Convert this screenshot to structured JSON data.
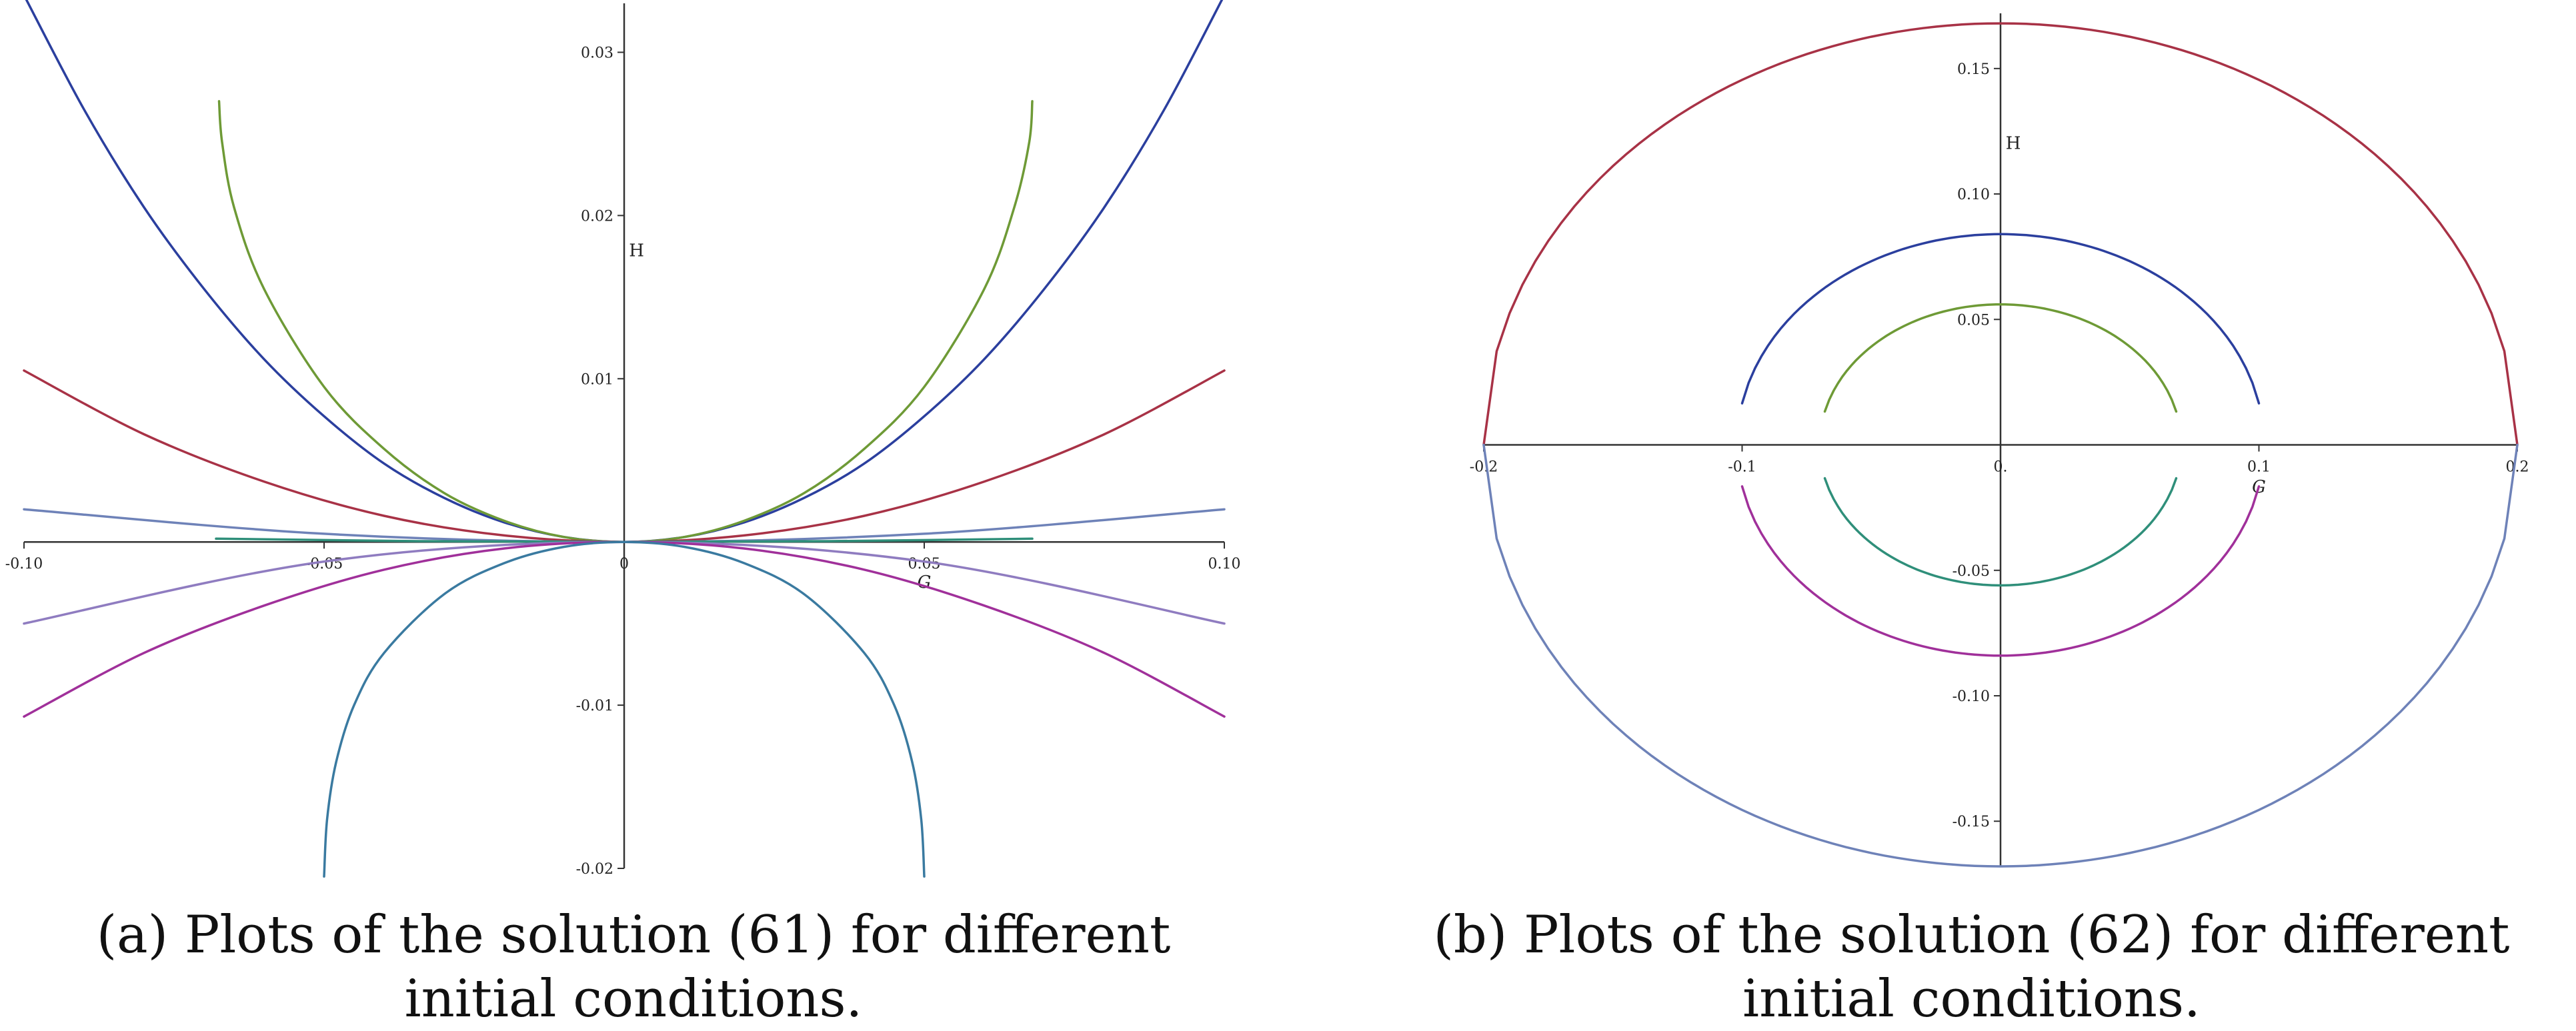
{
  "chart_data": [
    {
      "panel": "a",
      "type": "line",
      "caption": "(a) Plots of the solution (61) for different initial conditions.",
      "xlabel": "G",
      "ylabel": "H",
      "xlim": [
        -0.1,
        0.1
      ],
      "ylim": [
        -0.02,
        0.033
      ],
      "grid": false,
      "x_ticks": [
        {
          "value": -0.1,
          "label": "-0.10"
        },
        {
          "value": -0.05,
          "label": "-0.05"
        },
        {
          "value": 0,
          "label": "0"
        },
        {
          "value": 0.05,
          "label": "0.05"
        },
        {
          "value": 0.1,
          "label": "0.10"
        }
      ],
      "y_ticks": [
        {
          "value": 0.03,
          "label": "0.03"
        },
        {
          "value": 0.02,
          "label": "0.02"
        },
        {
          "value": 0.01,
          "label": "0.01"
        },
        {
          "value": -0.01,
          "label": "-0.01"
        },
        {
          "value": -0.02,
          "label": "-0.02"
        }
      ],
      "series": [
        {
          "color": "#2b3f9e",
          "x": [
            -0.1,
            -0.09,
            -0.08,
            -0.07,
            -0.06,
            -0.05,
            -0.04,
            -0.03,
            -0.02,
            -0.01,
            0,
            0.01,
            0.02,
            0.03,
            0.04,
            0.05,
            0.06,
            0.07,
            0.08,
            0.09,
            0.1
          ],
          "y": [
            0.0335,
            0.0265,
            0.0205,
            0.0155,
            0.0112,
            0.0077,
            0.0048,
            0.0027,
            0.0012,
            0.0003,
            0,
            0.0003,
            0.0012,
            0.0027,
            0.0048,
            0.0077,
            0.0112,
            0.0155,
            0.0205,
            0.0265,
            0.0335
          ]
        },
        {
          "color": "#6e9a36",
          "x": [
            -0.0675,
            -0.067,
            -0.065,
            -0.06,
            -0.05,
            -0.04,
            -0.03,
            -0.02,
            -0.01,
            0,
            0.01,
            0.02,
            0.03,
            0.04,
            0.05,
            0.06,
            0.065,
            0.0675,
            0.068
          ],
          "y": [
            0.027,
            0.0245,
            0.0205,
            0.0155,
            0.0095,
            0.0057,
            0.003,
            0.0013,
            0.0003,
            0,
            0.0003,
            0.0013,
            0.003,
            0.0057,
            0.0095,
            0.0155,
            0.0205,
            0.0245,
            0.027
          ]
        },
        {
          "color": "#a83246",
          "x": [
            -0.1,
            -0.08,
            -0.06,
            -0.04,
            -0.02,
            0,
            0.02,
            0.04,
            0.06,
            0.08,
            0.1
          ],
          "y": [
            0.0105,
            0.0066,
            0.0037,
            0.0016,
            0.0004,
            0,
            0.0004,
            0.0016,
            0.0037,
            0.0066,
            0.0105
          ]
        },
        {
          "color": "#6e82b8",
          "x": [
            -0.1,
            -0.05,
            0,
            0.05,
            0.1
          ],
          "y": [
            0.002,
            0.0005,
            0,
            0.0005,
            0.002
          ]
        },
        {
          "color": "#2f8f7a",
          "x": [
            -0.068,
            -0.034,
            0,
            0.034,
            0.068
          ],
          "y": [
            0.0002,
            5e-05,
            0,
            5e-05,
            0.0002
          ]
        },
        {
          "color": "#8f7cc0",
          "x": [
            -0.1,
            -0.05,
            0,
            0.05,
            0.1
          ],
          "y": [
            -0.005,
            -0.0012,
            0,
            -0.0012,
            -0.005
          ]
        },
        {
          "color": "#a0309a",
          "x": [
            -0.1,
            -0.08,
            -0.06,
            -0.04,
            -0.02,
            0,
            0.02,
            0.04,
            0.06,
            0.08,
            0.1
          ],
          "y": [
            -0.0107,
            -0.0068,
            -0.0039,
            -0.0017,
            -0.0004,
            0,
            -0.0004,
            -0.0017,
            -0.0039,
            -0.0068,
            -0.0107
          ]
        },
        {
          "color": "#3a7aa0",
          "x": [
            -0.05,
            -0.0495,
            -0.048,
            -0.045,
            -0.04,
            -0.03,
            -0.02,
            -0.01,
            0,
            0.01,
            0.02,
            0.03,
            0.04,
            0.045,
            0.048,
            0.0495,
            0.05
          ],
          "y": [
            -0.0205,
            -0.017,
            -0.0135,
            -0.01,
            -0.0068,
            -0.0032,
            -0.0013,
            -0.0003,
            0,
            -0.0003,
            -0.0013,
            -0.0032,
            -0.0068,
            -0.01,
            -0.0135,
            -0.017,
            -0.0205
          ]
        }
      ]
    },
    {
      "panel": "b",
      "type": "line",
      "caption": "(b) Plots of the solution (62) for different initial conditions.",
      "xlabel": "G",
      "ylabel": "H",
      "xlim": [
        -0.2,
        0.2
      ],
      "ylim": [
        -0.168,
        0.172
      ],
      "grid": false,
      "x_ticks": [
        {
          "value": -0.2,
          "label": "-0.2"
        },
        {
          "value": -0.1,
          "label": "-0.1"
        },
        {
          "value": 0,
          "label": "0."
        },
        {
          "value": 0.1,
          "label": "0.1"
        },
        {
          "value": 0.2,
          "label": "0.2"
        }
      ],
      "y_ticks": [
        {
          "value": 0.15,
          "label": "0.15"
        },
        {
          "value": 0.1,
          "label": "0.10"
        },
        {
          "value": 0.05,
          "label": "0.05"
        },
        {
          "value": -0.05,
          "label": "-0.05"
        },
        {
          "value": -0.1,
          "label": "-0.10"
        },
        {
          "value": -0.15,
          "label": "-0.15"
        }
      ],
      "series": [
        {
          "color": "#a83246",
          "center_h": 0,
          "semi_g": 0.2,
          "semi_h": 0.168,
          "g_range": [
            -0.2,
            0.2
          ],
          "sign": 1
        },
        {
          "color": "#2b3f9e",
          "center_h": 0,
          "semi_g": 0.102,
          "semi_h": 0.084,
          "g_range": [
            -0.1,
            0.1
          ],
          "sign": 1
        },
        {
          "color": "#6e9a36",
          "center_h": 0,
          "semi_g": 0.07,
          "semi_h": 0.056,
          "g_range": [
            -0.068,
            0.068
          ],
          "sign": 1
        },
        {
          "color": "#2f8f7a",
          "center_h": 0,
          "semi_g": 0.07,
          "semi_h": 0.056,
          "g_range": [
            -0.068,
            0.068
          ],
          "sign": -1
        },
        {
          "color": "#a0309a",
          "center_h": 0,
          "semi_g": 0.102,
          "semi_h": 0.084,
          "g_range": [
            -0.1,
            0.1
          ],
          "sign": -1
        },
        {
          "color": "#6e82b8",
          "center_h": 0,
          "semi_g": 0.2,
          "semi_h": 0.168,
          "g_range": [
            -0.2,
            0.2
          ],
          "sign": -1
        }
      ]
    }
  ]
}
